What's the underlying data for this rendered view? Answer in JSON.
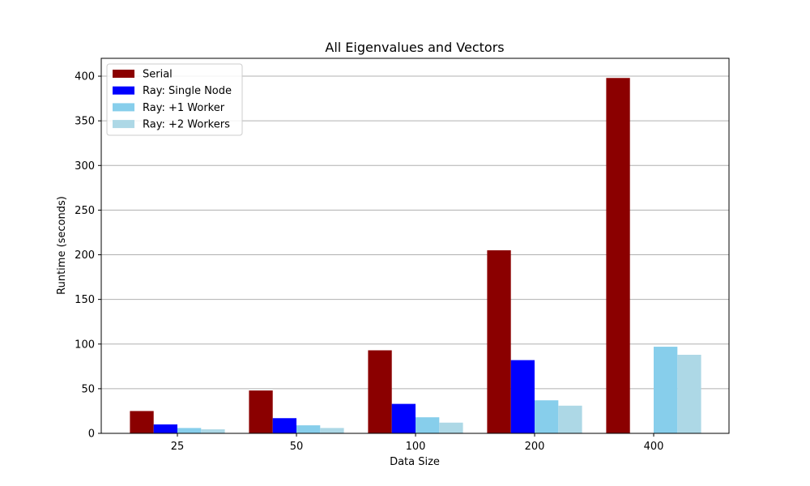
{
  "chart_data": {
    "type": "bar",
    "title": "All Eigenvalues and Vectors",
    "xlabel": "Data Size",
    "ylabel": "Runtime (seconds)",
    "categories": [
      "25",
      "50",
      "100",
      "200",
      "400"
    ],
    "ylim": [
      0,
      420
    ],
    "yticks": [
      0,
      50,
      100,
      150,
      200,
      250,
      300,
      350,
      400
    ],
    "grid": "horizontal",
    "legend_position": "top-left",
    "series": [
      {
        "name": "Serial",
        "color": "#8b0000",
        "values": [
          25,
          48,
          93,
          205,
          398
        ]
      },
      {
        "name": "Ray: Single Node",
        "color": "#0000ff",
        "values": [
          10,
          17,
          33,
          82,
          null
        ]
      },
      {
        "name": "Ray: +1 Worker",
        "color": "#87ceeb",
        "values": [
          6,
          9,
          18,
          37,
          97
        ]
      },
      {
        "name": "Ray: +2 Workers",
        "color": "#add8e6",
        "values": [
          4.5,
          6,
          12,
          31,
          88
        ]
      }
    ]
  }
}
